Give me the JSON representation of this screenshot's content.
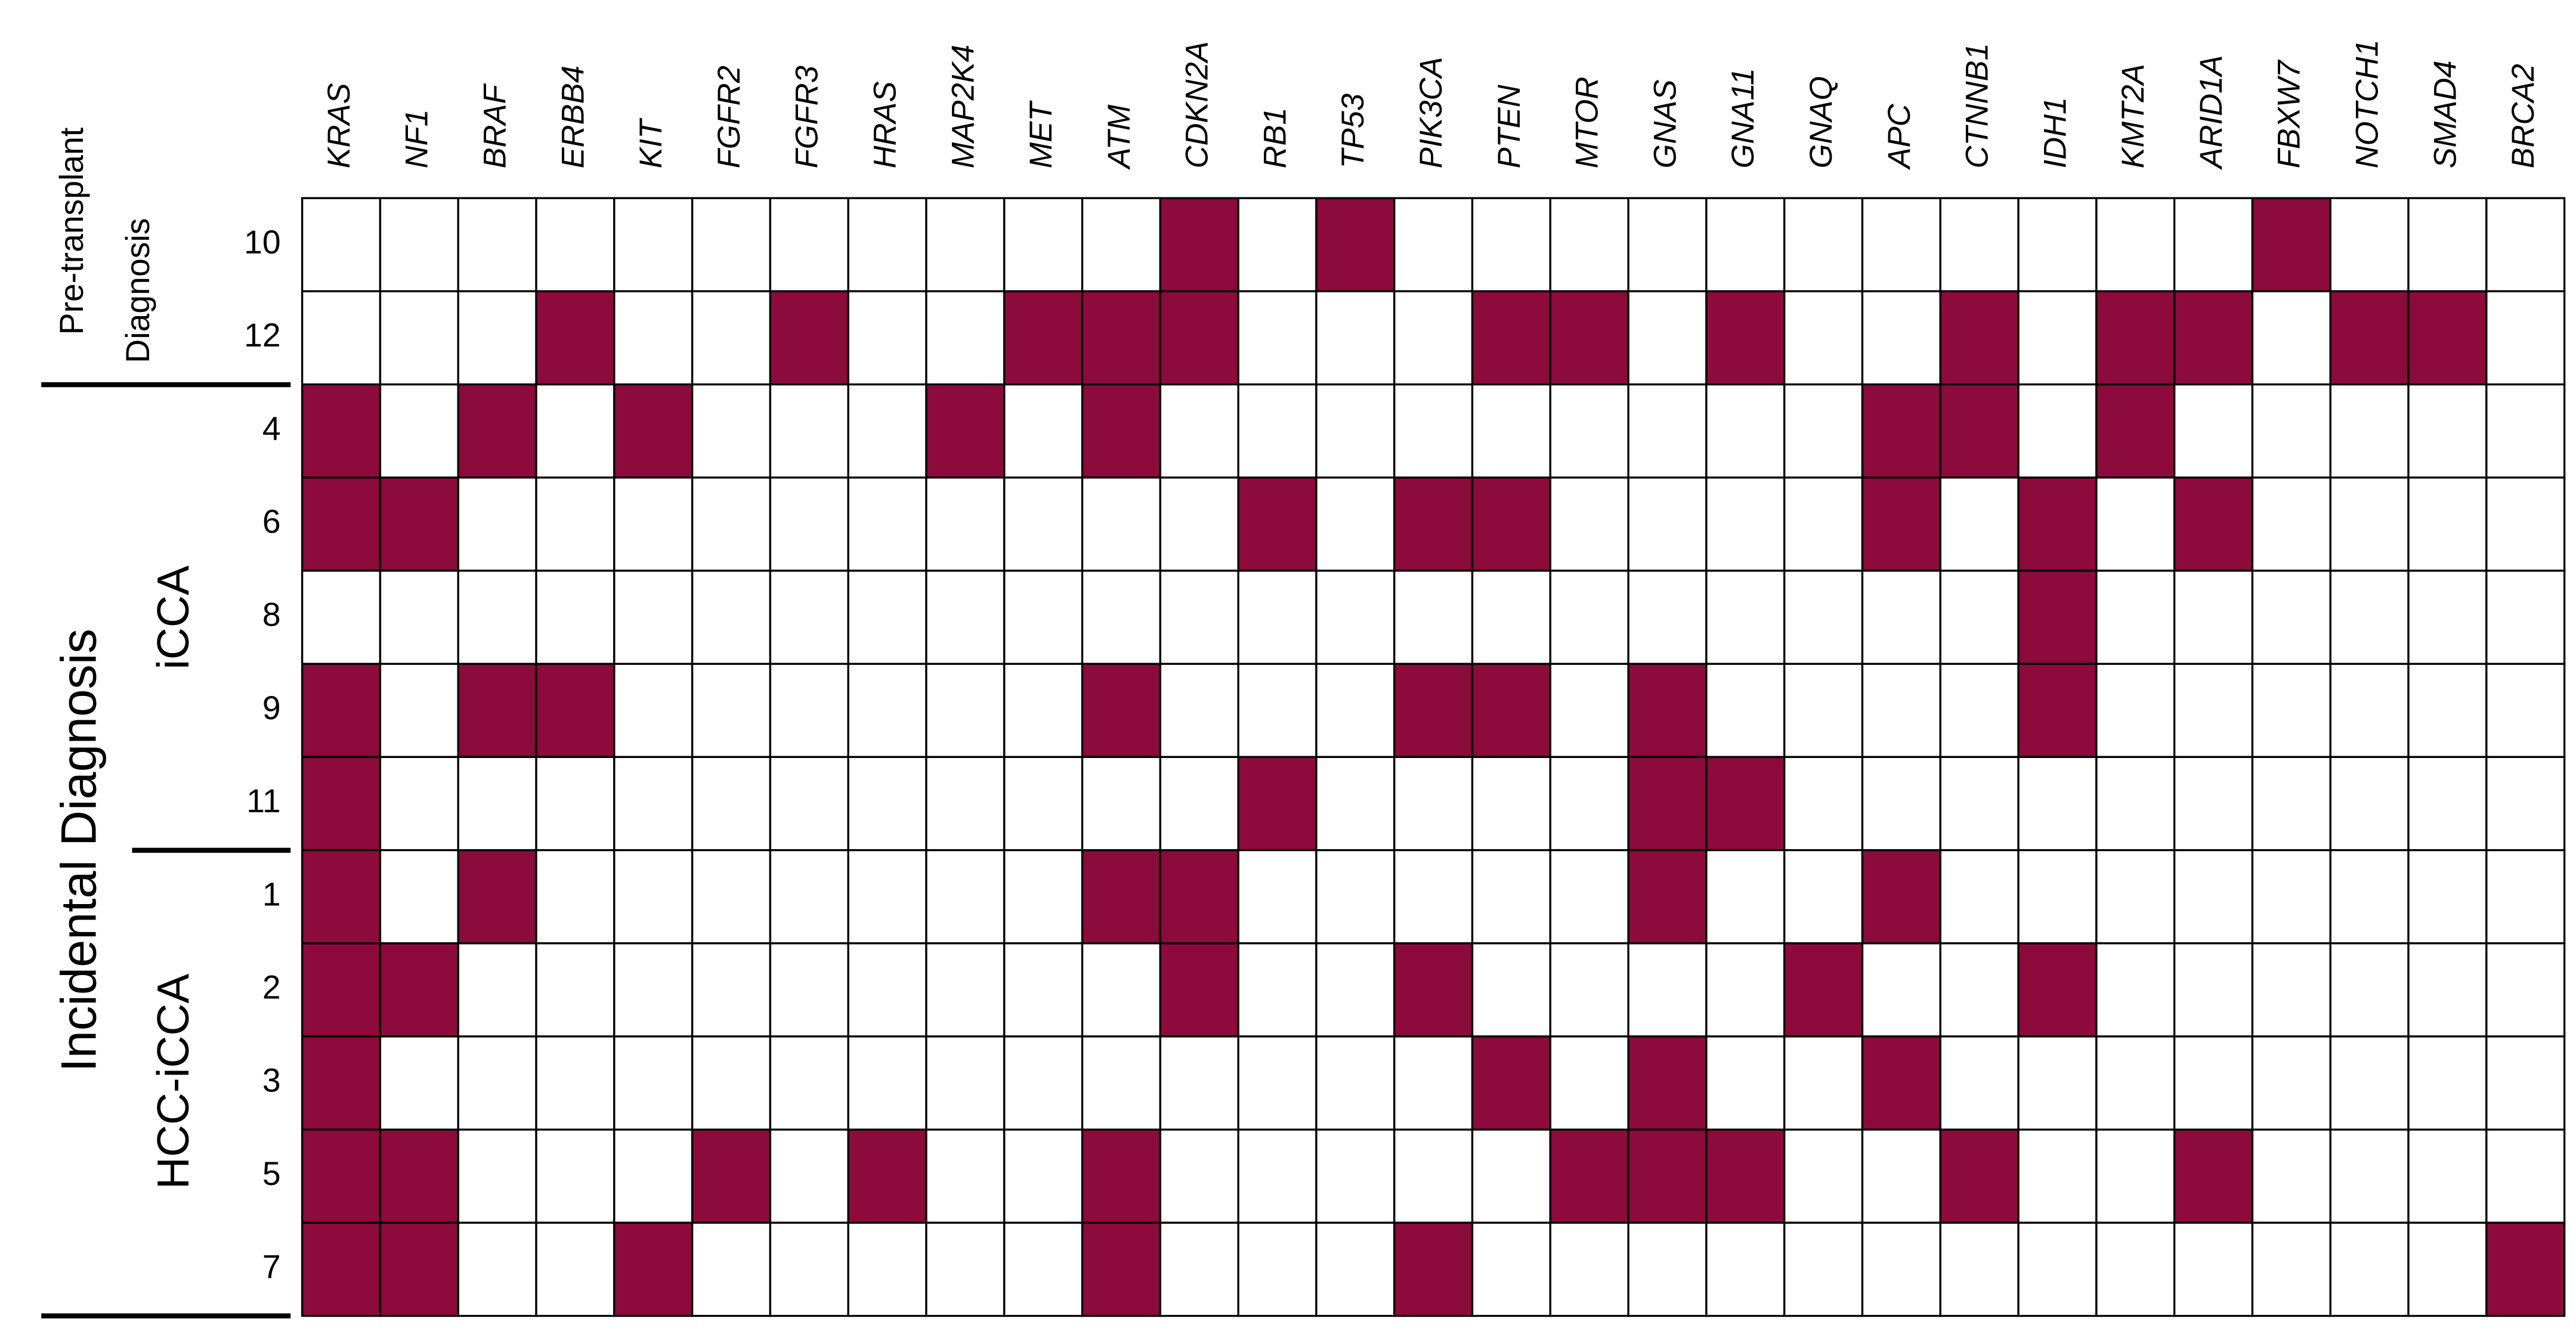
{
  "chart_data": {
    "type": "heatmap",
    "color": "#8c0a3c",
    "columns": [
      "KRAS",
      "NF1",
      "BRAF",
      "ERBB4",
      "KIT",
      "FGFR2",
      "FGFR3",
      "HRAS",
      "MAP2K4",
      "MET",
      "ATM",
      "CDKN2A",
      "RB1",
      "TP53",
      "PIK3CA",
      "PTEN",
      "MTOR",
      "GNAS",
      "GNA11",
      "GNAQ",
      "APC",
      "CTNNB1",
      "IDH1",
      "KMT2A",
      "ARID1A",
      "FBXW7",
      "NOTCH1",
      "SMAD4",
      "BRCA2"
    ],
    "rows": [
      "10",
      "12",
      "4",
      "6",
      "8",
      "9",
      "11",
      "1",
      "2",
      "3",
      "5",
      "7"
    ],
    "groups": {
      "pretransplant": [
        "Pre-transplant",
        "Diagnosis"
      ],
      "incidental": "Incidental Diagnosis",
      "subgroups": [
        "iCCA",
        "HCC-iCCA"
      ]
    },
    "values": [
      [
        0,
        0,
        0,
        0,
        0,
        0,
        0,
        0,
        0,
        0,
        0,
        1,
        0,
        1,
        0,
        0,
        0,
        0,
        0,
        0,
        0,
        0,
        0,
        0,
        0,
        1,
        0,
        0,
        0
      ],
      [
        0,
        0,
        0,
        1,
        0,
        0,
        1,
        0,
        0,
        1,
        1,
        1,
        0,
        0,
        0,
        1,
        1,
        0,
        1,
        0,
        0,
        1,
        0,
        1,
        1,
        0,
        1,
        1,
        0
      ],
      [
        1,
        0,
        1,
        0,
        1,
        0,
        0,
        0,
        1,
        0,
        1,
        0,
        0,
        0,
        0,
        0,
        0,
        0,
        0,
        0,
        1,
        1,
        0,
        1,
        0,
        0,
        0,
        0,
        0
      ],
      [
        1,
        1,
        0,
        0,
        0,
        0,
        0,
        0,
        0,
        0,
        0,
        0,
        1,
        0,
        1,
        1,
        0,
        0,
        0,
        0,
        1,
        0,
        1,
        0,
        1,
        0,
        0,
        0,
        0
      ],
      [
        0,
        0,
        0,
        0,
        0,
        0,
        0,
        0,
        0,
        0,
        0,
        0,
        0,
        0,
        0,
        0,
        0,
        0,
        0,
        0,
        0,
        0,
        1,
        0,
        0,
        0,
        0,
        0,
        0
      ],
      [
        1,
        0,
        1,
        1,
        0,
        0,
        0,
        0,
        0,
        0,
        1,
        0,
        0,
        0,
        1,
        1,
        0,
        1,
        0,
        0,
        0,
        0,
        1,
        0,
        0,
        0,
        0,
        0,
        0
      ],
      [
        1,
        0,
        0,
        0,
        0,
        0,
        0,
        0,
        0,
        0,
        0,
        0,
        1,
        0,
        0,
        0,
        0,
        1,
        1,
        0,
        0,
        0,
        0,
        0,
        0,
        0,
        0,
        0,
        0
      ],
      [
        1,
        0,
        1,
        0,
        0,
        0,
        0,
        0,
        0,
        0,
        1,
        1,
        0,
        0,
        0,
        0,
        0,
        1,
        0,
        0,
        1,
        0,
        0,
        0,
        0,
        0,
        0,
        0,
        0
      ],
      [
        1,
        1,
        0,
        0,
        0,
        0,
        0,
        0,
        0,
        0,
        0,
        1,
        0,
        0,
        1,
        0,
        0,
        0,
        0,
        1,
        0,
        0,
        1,
        0,
        0,
        0,
        0,
        0,
        0
      ],
      [
        1,
        0,
        0,
        0,
        0,
        0,
        0,
        0,
        0,
        0,
        0,
        0,
        0,
        0,
        0,
        1,
        0,
        1,
        0,
        0,
        1,
        0,
        0,
        0,
        0,
        0,
        0,
        0,
        0
      ],
      [
        1,
        1,
        0,
        0,
        0,
        1,
        0,
        1,
        0,
        0,
        1,
        0,
        0,
        0,
        0,
        0,
        1,
        1,
        1,
        0,
        0,
        1,
        0,
        0,
        1,
        0,
        0,
        0,
        0
      ],
      [
        1,
        1,
        0,
        0,
        1,
        0,
        0,
        0,
        0,
        0,
        1,
        0,
        0,
        0,
        1,
        0,
        0,
        0,
        0,
        0,
        0,
        0,
        0,
        0,
        0,
        0,
        0,
        0,
        1
      ]
    ]
  }
}
